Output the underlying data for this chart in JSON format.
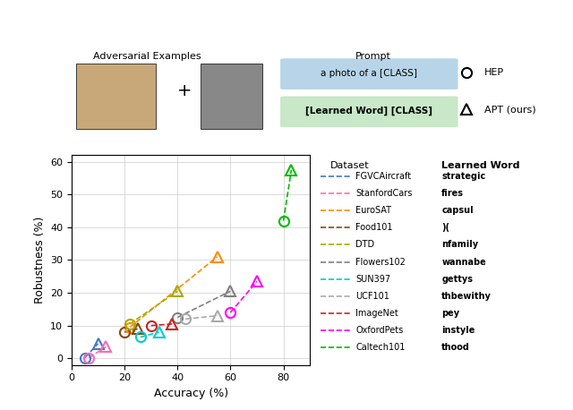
{
  "datasets": [
    {
      "name": "FGVCAircraft",
      "color": "#4477CC",
      "learned_word": "strategic",
      "hep": [
        5.0,
        0.2
      ],
      "apt": [
        10.0,
        4.5
      ]
    },
    {
      "name": "StanfordCars",
      "color": "#FF69B4",
      "learned_word": "fires",
      "hep": [
        6.5,
        0.2
      ],
      "apt": [
        13.0,
        3.5
      ]
    },
    {
      "name": "EuroSAT",
      "color": "#FF8C00",
      "learned_word": "capsul",
      "hep": [
        22.0,
        9.5
      ],
      "apt": [
        55.0,
        31.0
      ]
    },
    {
      "name": "Food101",
      "color": "#8B4513",
      "learned_word": ")(",
      "hep": [
        20.0,
        8.0
      ],
      "apt": [
        25.0,
        9.0
      ]
    },
    {
      "name": "DTD",
      "color": "#AAAA00",
      "learned_word": "nfamily",
      "hep": [
        22.0,
        10.5
      ],
      "apt": [
        40.0,
        20.5
      ]
    },
    {
      "name": "Flowers102",
      "color": "#808080",
      "learned_word": "wannabe",
      "hep": [
        40.0,
        12.5
      ],
      "apt": [
        60.0,
        20.5
      ]
    },
    {
      "name": "SUN397",
      "color": "#00CCCC",
      "learned_word": "gettys",
      "hep": [
        26.0,
        6.5
      ],
      "apt": [
        33.0,
        8.0
      ]
    },
    {
      "name": "UCF101",
      "color": "#AAAAAA",
      "learned_word": "thbewithy",
      "hep": [
        43.0,
        12.0
      ],
      "apt": [
        55.0,
        13.0
      ]
    },
    {
      "name": "ImageNet",
      "color": "#CC2222",
      "learned_word": "pey",
      "hep": [
        30.0,
        10.0
      ],
      "apt": [
        38.0,
        10.5
      ]
    },
    {
      "name": "OxfordPets",
      "color": "#FF00FF",
      "learned_word": "instyle",
      "hep": [
        60.0,
        14.0
      ],
      "apt": [
        70.0,
        23.5
      ]
    },
    {
      "name": "Caltech101",
      "color": "#00BB00",
      "learned_word": "thood",
      "hep": [
        80.0,
        42.0
      ],
      "apt": [
        83.0,
        57.5
      ]
    }
  ],
  "xlim": [
    0,
    90
  ],
  "ylim": [
    -2,
    62
  ],
  "xticks": [
    0,
    20,
    40,
    60,
    80
  ],
  "yticks": [
    0,
    10,
    20,
    30,
    40,
    50,
    60
  ],
  "xlabel": "Accuracy (%)",
  "ylabel": "Robustness (%)",
  "hep_label": "HEP",
  "apt_label": "APT (ours)",
  "prompt_label": "Prompt",
  "adversarial_label": "Adversarial Examples",
  "prompt_text1": "a photo of a [CLASS]",
  "prompt_text2": "[Learned Word] [CLASS]",
  "prompt_color1": "#B8D4E8",
  "prompt_color2": "#C8E8C8",
  "legend_header_dataset": "Dataset",
  "legend_header_word": "Learned Word"
}
